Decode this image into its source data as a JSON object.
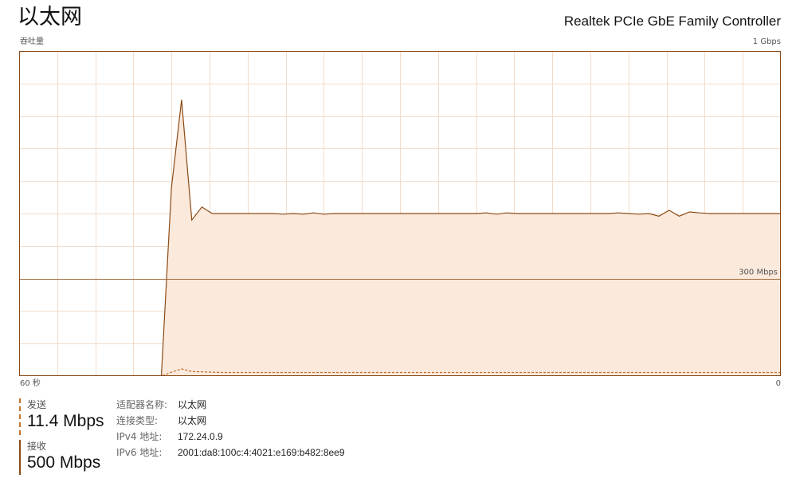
{
  "header": {
    "title": "以太网",
    "adapter": "Realtek PCIe GbE Family Controller"
  },
  "graph": {
    "y_label": "吞吐量",
    "y_max_label": "1 Gbps",
    "time_span_label": "60 秒",
    "time_end_label": "0",
    "scale_line_label": "300 Mbps"
  },
  "chart_data": {
    "type": "area",
    "x_range_seconds": [
      60,
      0
    ],
    "y_max_mbps": 1000,
    "series": [
      {
        "name": "接收",
        "line_color": "#8b4a14",
        "fill_color": "#fbe9dc",
        "style": "solid",
        "values": [
          0,
          0,
          0,
          0,
          0,
          0,
          0,
          0,
          0,
          0,
          0,
          0,
          0,
          0,
          0,
          580,
          850,
          480,
          520,
          500,
          500,
          500,
          500,
          500,
          500,
          500,
          498,
          500,
          498,
          502,
          498,
          500,
          500,
          500,
          500,
          500,
          500,
          500,
          500,
          500,
          500,
          500,
          500,
          500,
          500,
          500,
          502,
          498,
          502,
          500,
          500,
          500,
          500,
          500,
          500,
          500,
          500,
          500,
          500,
          502,
          500,
          498,
          500,
          492,
          510,
          492,
          505,
          502,
          500,
          500,
          500,
          500,
          500,
          500,
          500,
          500
        ],
        "x_start": 60
      },
      {
        "name": "发送",
        "line_color": "#c0702a",
        "style": "dashed",
        "values": [
          0,
          0,
          0,
          0,
          0,
          0,
          0,
          0,
          0,
          0,
          0,
          0,
          0,
          0,
          0,
          12,
          22,
          14,
          13,
          12,
          11,
          11,
          11,
          11,
          11,
          11,
          11,
          11,
          11,
          11,
          11,
          11,
          11,
          11,
          11,
          11,
          11,
          11,
          11,
          11,
          11,
          11,
          11,
          11,
          11,
          11,
          11,
          11,
          11,
          11,
          11,
          11,
          11,
          11,
          11,
          11,
          11,
          11,
          11,
          11,
          11,
          11,
          11,
          11,
          11,
          11,
          11,
          11,
          11,
          11,
          11,
          11,
          11,
          11,
          11,
          11
        ]
      }
    ],
    "scale_line_mbps": 300
  },
  "stats": {
    "send_label": "发送",
    "send_value": "11.4 Mbps",
    "recv_label": "接收",
    "recv_value": "500 Mbps"
  },
  "properties": [
    {
      "key": "适配器名称:",
      "value": "以太网"
    },
    {
      "key": "连接类型:",
      "value": "以太网"
    },
    {
      "key": "IPv4 地址:",
      "value": "172.24.0.9"
    },
    {
      "key": "IPv6 地址:",
      "value": "2001:da8:100c:4:4021:e169:b482:8ee9"
    }
  ]
}
